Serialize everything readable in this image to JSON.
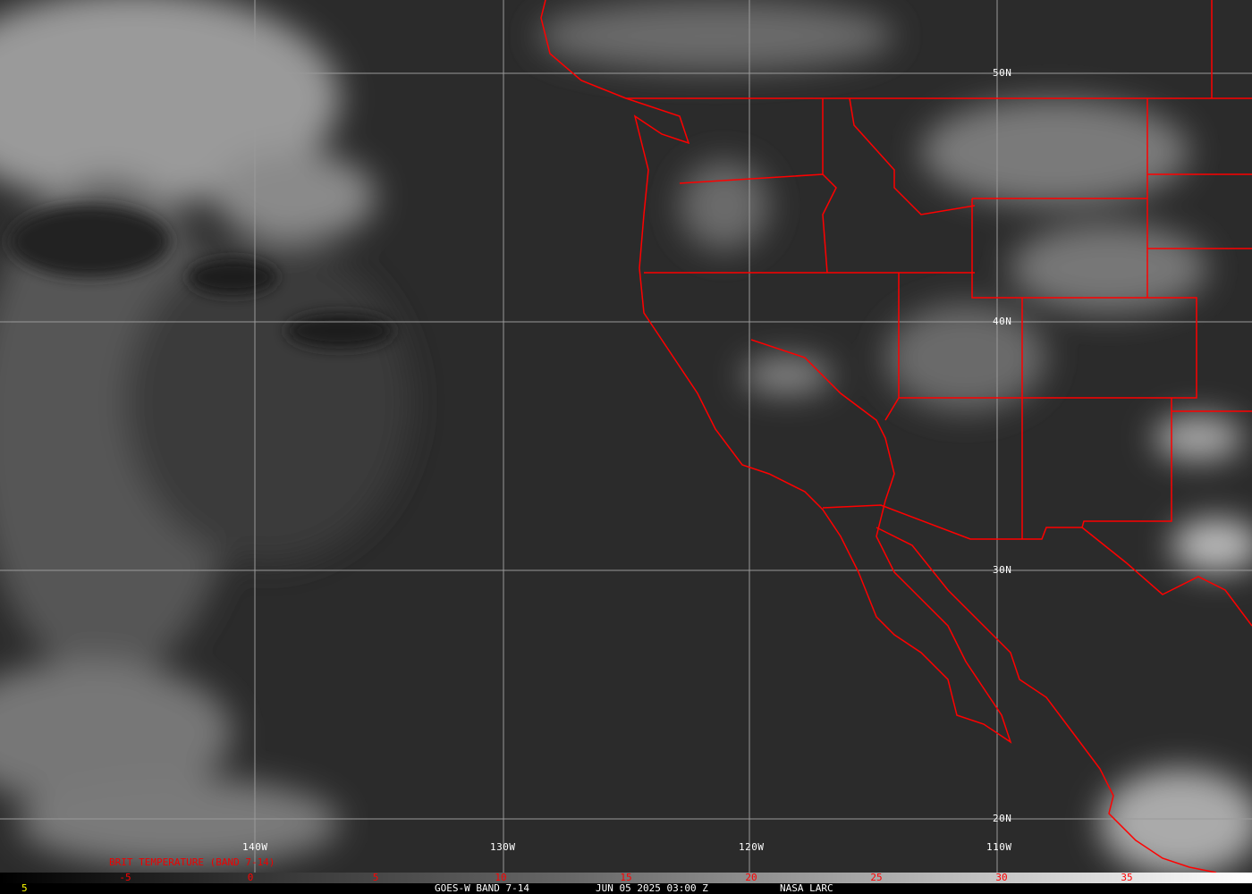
{
  "map": {
    "longitude_labels": [
      "140W",
      "130W",
      "120W",
      "110W"
    ],
    "latitude_labels": [
      "50N",
      "40N",
      "30N",
      "20N"
    ],
    "border_color": "#ff0000",
    "grid_color": "#9a9a9a"
  },
  "colorbar": {
    "title": "BRIT TEMPERATURE (BAND 7-14)",
    "ticks": [
      "-5",
      "0",
      "5",
      "10",
      "15",
      "20",
      "25",
      "30",
      "35"
    ],
    "range": [
      -10,
      40
    ],
    "tick_color": "#ff0000"
  },
  "footer": {
    "frame_number": "5",
    "product": "GOES-W BAND 7-14",
    "datetime": "JUN 05 2025 03:00 Z",
    "source": "NASA LARC"
  }
}
